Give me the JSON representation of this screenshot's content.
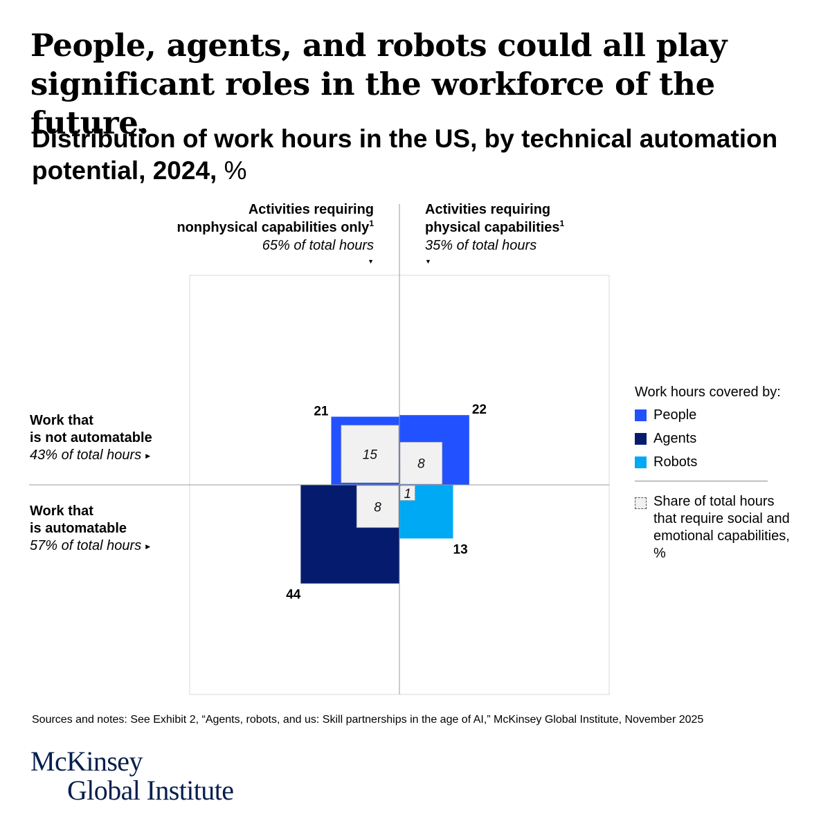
{
  "headline": "People, agents, and robots could all play significant roles in the workforce of the future.",
  "subtitle": {
    "main": "Distribution of work hours in the US, by technical automation potential, 2024,",
    "unit": "%"
  },
  "columns": {
    "left": {
      "line1": "Activities requiring",
      "line2": "nonphysical capabilities only",
      "footnote": "1",
      "share": "65% of total hours"
    },
    "right": {
      "line1": "Activities requiring",
      "line2": "physical capabilities",
      "footnote": "1",
      "share": "35% of total hours"
    }
  },
  "rows": {
    "top": {
      "line1": "Work that",
      "line2": "is not automatable",
      "share": "43% of total hours"
    },
    "bottom": {
      "line1": "Work that",
      "line2": "is automatable",
      "share": "57% of total hours"
    }
  },
  "legend": {
    "title": "Work hours covered by:",
    "items": [
      {
        "label": "People",
        "color": "#2251ff"
      },
      {
        "label": "Agents",
        "color": "#051c6e"
      },
      {
        "label": "Robots",
        "color": "#00a9f4"
      }
    ],
    "note": "Share of total hours that require social and emotional capabilities, %"
  },
  "chart_data": {
    "type": "area",
    "description_axes": {
      "x": "nonphysical (left) vs physical (right) activities",
      "y": "not automatable (top) vs automatable (bottom)"
    },
    "colors": {
      "People": "#2251ff",
      "Agents": "#051c6e",
      "Robots": "#00a9f4",
      "social_emotional": "#f1f1f1"
    },
    "quadrants": [
      {
        "id": "nonphysical-not-automatable",
        "covered_by": "People",
        "value": 21,
        "social_emotional": 15
      },
      {
        "id": "physical-not-automatable",
        "covered_by": "People",
        "value": 22,
        "social_emotional": 8
      },
      {
        "id": "nonphysical-automatable",
        "covered_by": "Agents",
        "value": 44,
        "social_emotional": 8
      },
      {
        "id": "physical-automatable",
        "covered_by": "Robots",
        "value": 13,
        "social_emotional": 1
      }
    ]
  },
  "sources": "Sources and notes: See Exhibit 2, “Agents, robots, and us: Skill partnerships in the age of AI,” McKinsey Global Institute, November 2025",
  "logo": {
    "line1": "McKinsey",
    "line2": "Global Institute"
  }
}
